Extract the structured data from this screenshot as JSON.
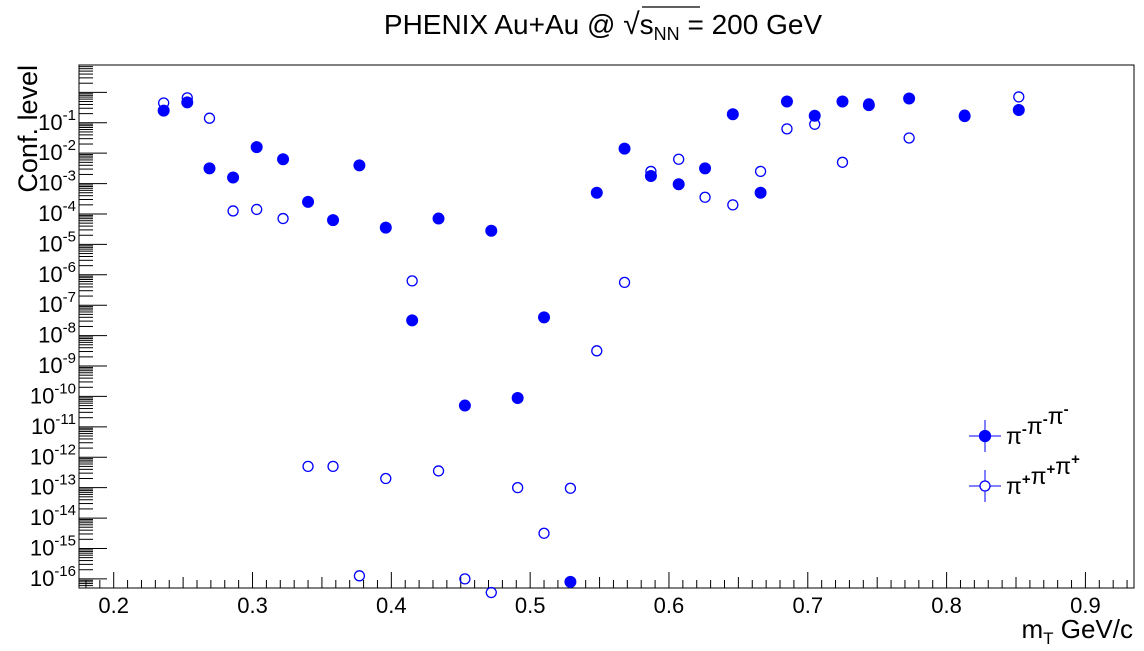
{
  "chart_data": {
    "type": "scatter",
    "title": {
      "prefix": "PHENIX Au+Au @ ",
      "sqrt_symbol": "√",
      "sqrt_arg": "s",
      "sqrt_sub": "NN",
      "suffix": " = 200 GeV"
    },
    "xlabel": {
      "main": "m",
      "sub": "T",
      "rest": " GeV/c"
    },
    "ylabel": "Conf. level",
    "xlim": [
      0.175,
      0.935
    ],
    "ylim_log10": [
      -16.3,
      0.9
    ],
    "y_scale": "log",
    "x_ticks": [
      "0.2",
      "0.3",
      "0.4",
      "0.5",
      "0.6",
      "0.7",
      "0.8",
      "0.9"
    ],
    "y_ticks": [
      {
        "base": "10",
        "exp": "-16"
      },
      {
        "base": "10",
        "exp": "-15"
      },
      {
        "base": "10",
        "exp": "-14"
      },
      {
        "base": "10",
        "exp": "-13"
      },
      {
        "base": "10",
        "exp": "-12"
      },
      {
        "base": "10",
        "exp": "-11"
      },
      {
        "base": "10",
        "exp": "-10"
      },
      {
        "base": "10",
        "exp": "-9"
      },
      {
        "base": "10",
        "exp": "-8"
      },
      {
        "base": "10",
        "exp": "-7"
      },
      {
        "base": "10",
        "exp": "-6"
      },
      {
        "base": "10",
        "exp": "-5"
      },
      {
        "base": "10",
        "exp": "-4"
      },
      {
        "base": "10",
        "exp": "-3"
      },
      {
        "base": "10",
        "exp": "-2"
      },
      {
        "base": "10",
        "exp": "-1"
      }
    ],
    "legend_position": "right",
    "grid": false,
    "series": [
      {
        "name": "π-π-π-",
        "marker": "filled-circle",
        "color": "#0000ff",
        "x": [
          0.236,
          0.253,
          0.269,
          0.286,
          0.303,
          0.322,
          0.34,
          0.358,
          0.377,
          0.396,
          0.415,
          0.434,
          0.453,
          0.472,
          0.491,
          0.51,
          0.529,
          0.548,
          0.568,
          0.587,
          0.607,
          0.626,
          0.646,
          0.666,
          0.685,
          0.705,
          0.725,
          0.744,
          0.773,
          0.813,
          0.852
        ],
        "y": [
          -0.6,
          -0.33,
          -2.5,
          -2.8,
          -1.8,
          -2.2,
          -3.6,
          -4.2,
          -2.4,
          -4.45,
          -7.5,
          -4.15,
          -10.3,
          -4.55,
          -10.05,
          -7.4,
          -16.1,
          -3.3,
          -1.85,
          -2.75,
          -3.02,
          -2.5,
          -0.72,
          -3.3,
          -0.3,
          -0.77,
          -0.3,
          -0.42,
          -0.2,
          -0.78,
          -0.58
        ]
      },
      {
        "name": "π+π+π+",
        "marker": "open-circle",
        "color": "#0000ff",
        "x": [
          0.236,
          0.253,
          0.269,
          0.286,
          0.303,
          0.322,
          0.34,
          0.358,
          0.377,
          0.396,
          0.415,
          0.434,
          0.453,
          0.472,
          0.491,
          0.51,
          0.529,
          0.548,
          0.568,
          0.587,
          0.607,
          0.626,
          0.646,
          0.666,
          0.685,
          0.705,
          0.725,
          0.744,
          0.773,
          0.813,
          0.852
        ],
        "y": [
          -0.35,
          -0.18,
          -0.85,
          -3.9,
          -3.85,
          -4.15,
          -12.3,
          -12.3,
          -15.9,
          -12.7,
          -6.2,
          -12.45,
          -16.0,
          -16.45,
          -13.0,
          -14.5,
          -13.02,
          -8.5,
          -6.25,
          -2.6,
          -2.2,
          -3.45,
          -3.7,
          -2.6,
          -1.2,
          -1.05,
          -2.3,
          -0.38,
          -1.5,
          -0.75,
          -0.15
        ]
      }
    ],
    "legend": [
      {
        "label_parts": [
          {
            "t": "π",
            "s": "-"
          },
          {
            "t": "π",
            "s": "-"
          },
          {
            "t": "π",
            "s": "-"
          }
        ],
        "marker": "filled-circle"
      },
      {
        "label_parts": [
          {
            "t": "π",
            "s": "+"
          },
          {
            "t": "π",
            "s": "+"
          },
          {
            "t": "π",
            "s": "+"
          }
        ],
        "marker": "open-circle"
      }
    ]
  }
}
